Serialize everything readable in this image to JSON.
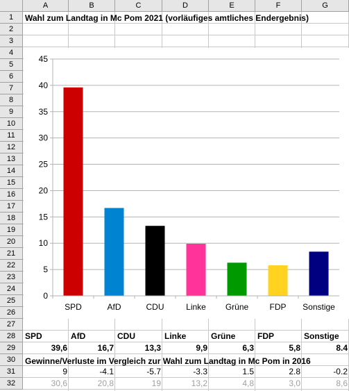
{
  "columns": [
    "A",
    "B",
    "C",
    "D",
    "E",
    "F",
    "G"
  ],
  "rows": [
    "1",
    "2",
    "3",
    "4",
    "5",
    "6",
    "7",
    "8",
    "9",
    "10",
    "11",
    "12",
    "13",
    "14",
    "15",
    "16",
    "17",
    "18",
    "19",
    "20",
    "21",
    "22",
    "23",
    "24",
    "25",
    "26",
    "27",
    "28",
    "29",
    "30",
    "31",
    "32"
  ],
  "title": "Wahl zum Landtag in Mc Pom 2021 (vorläufiges amtliches Endergebnis)",
  "row28": [
    "SPD",
    "AfD",
    "CDU",
    "Linke",
    "Grüne",
    "FDP",
    "Sonstige"
  ],
  "row29": [
    "39,6",
    "16,7",
    "13,3",
    "9,9",
    "6,3",
    "5,8",
    "8.4"
  ],
  "row30": "Gewinne/Verluste im Vergleich zur Wahl zum Landtag in Mc Pom in 2016",
  "row31": [
    "9",
    "-4.1",
    "-5.7",
    "-3.3",
    "1.5",
    "2.8",
    "-0.2"
  ],
  "row32": [
    "30,6",
    "20,8",
    "19",
    "13,2",
    "4,8",
    "3,0",
    "8,6"
  ],
  "chart_data": {
    "type": "bar",
    "categories": [
      "SPD",
      "AfD",
      "CDU",
      "Linke",
      "Grüne",
      "FDP",
      "Sonstige"
    ],
    "values": [
      39.6,
      16.7,
      13.3,
      9.9,
      6.3,
      5.8,
      8.4
    ],
    "colors": [
      "#cc0000",
      "#0084d1",
      "#000000",
      "#ff3399",
      "#009900",
      "#ffd320",
      "#000080"
    ],
    "ylim": [
      0,
      45
    ],
    "yticks": [
      "0",
      "5",
      "10",
      "15",
      "20",
      "25",
      "30",
      "35",
      "40",
      "45"
    ],
    "grid": true,
    "legend": "none"
  }
}
